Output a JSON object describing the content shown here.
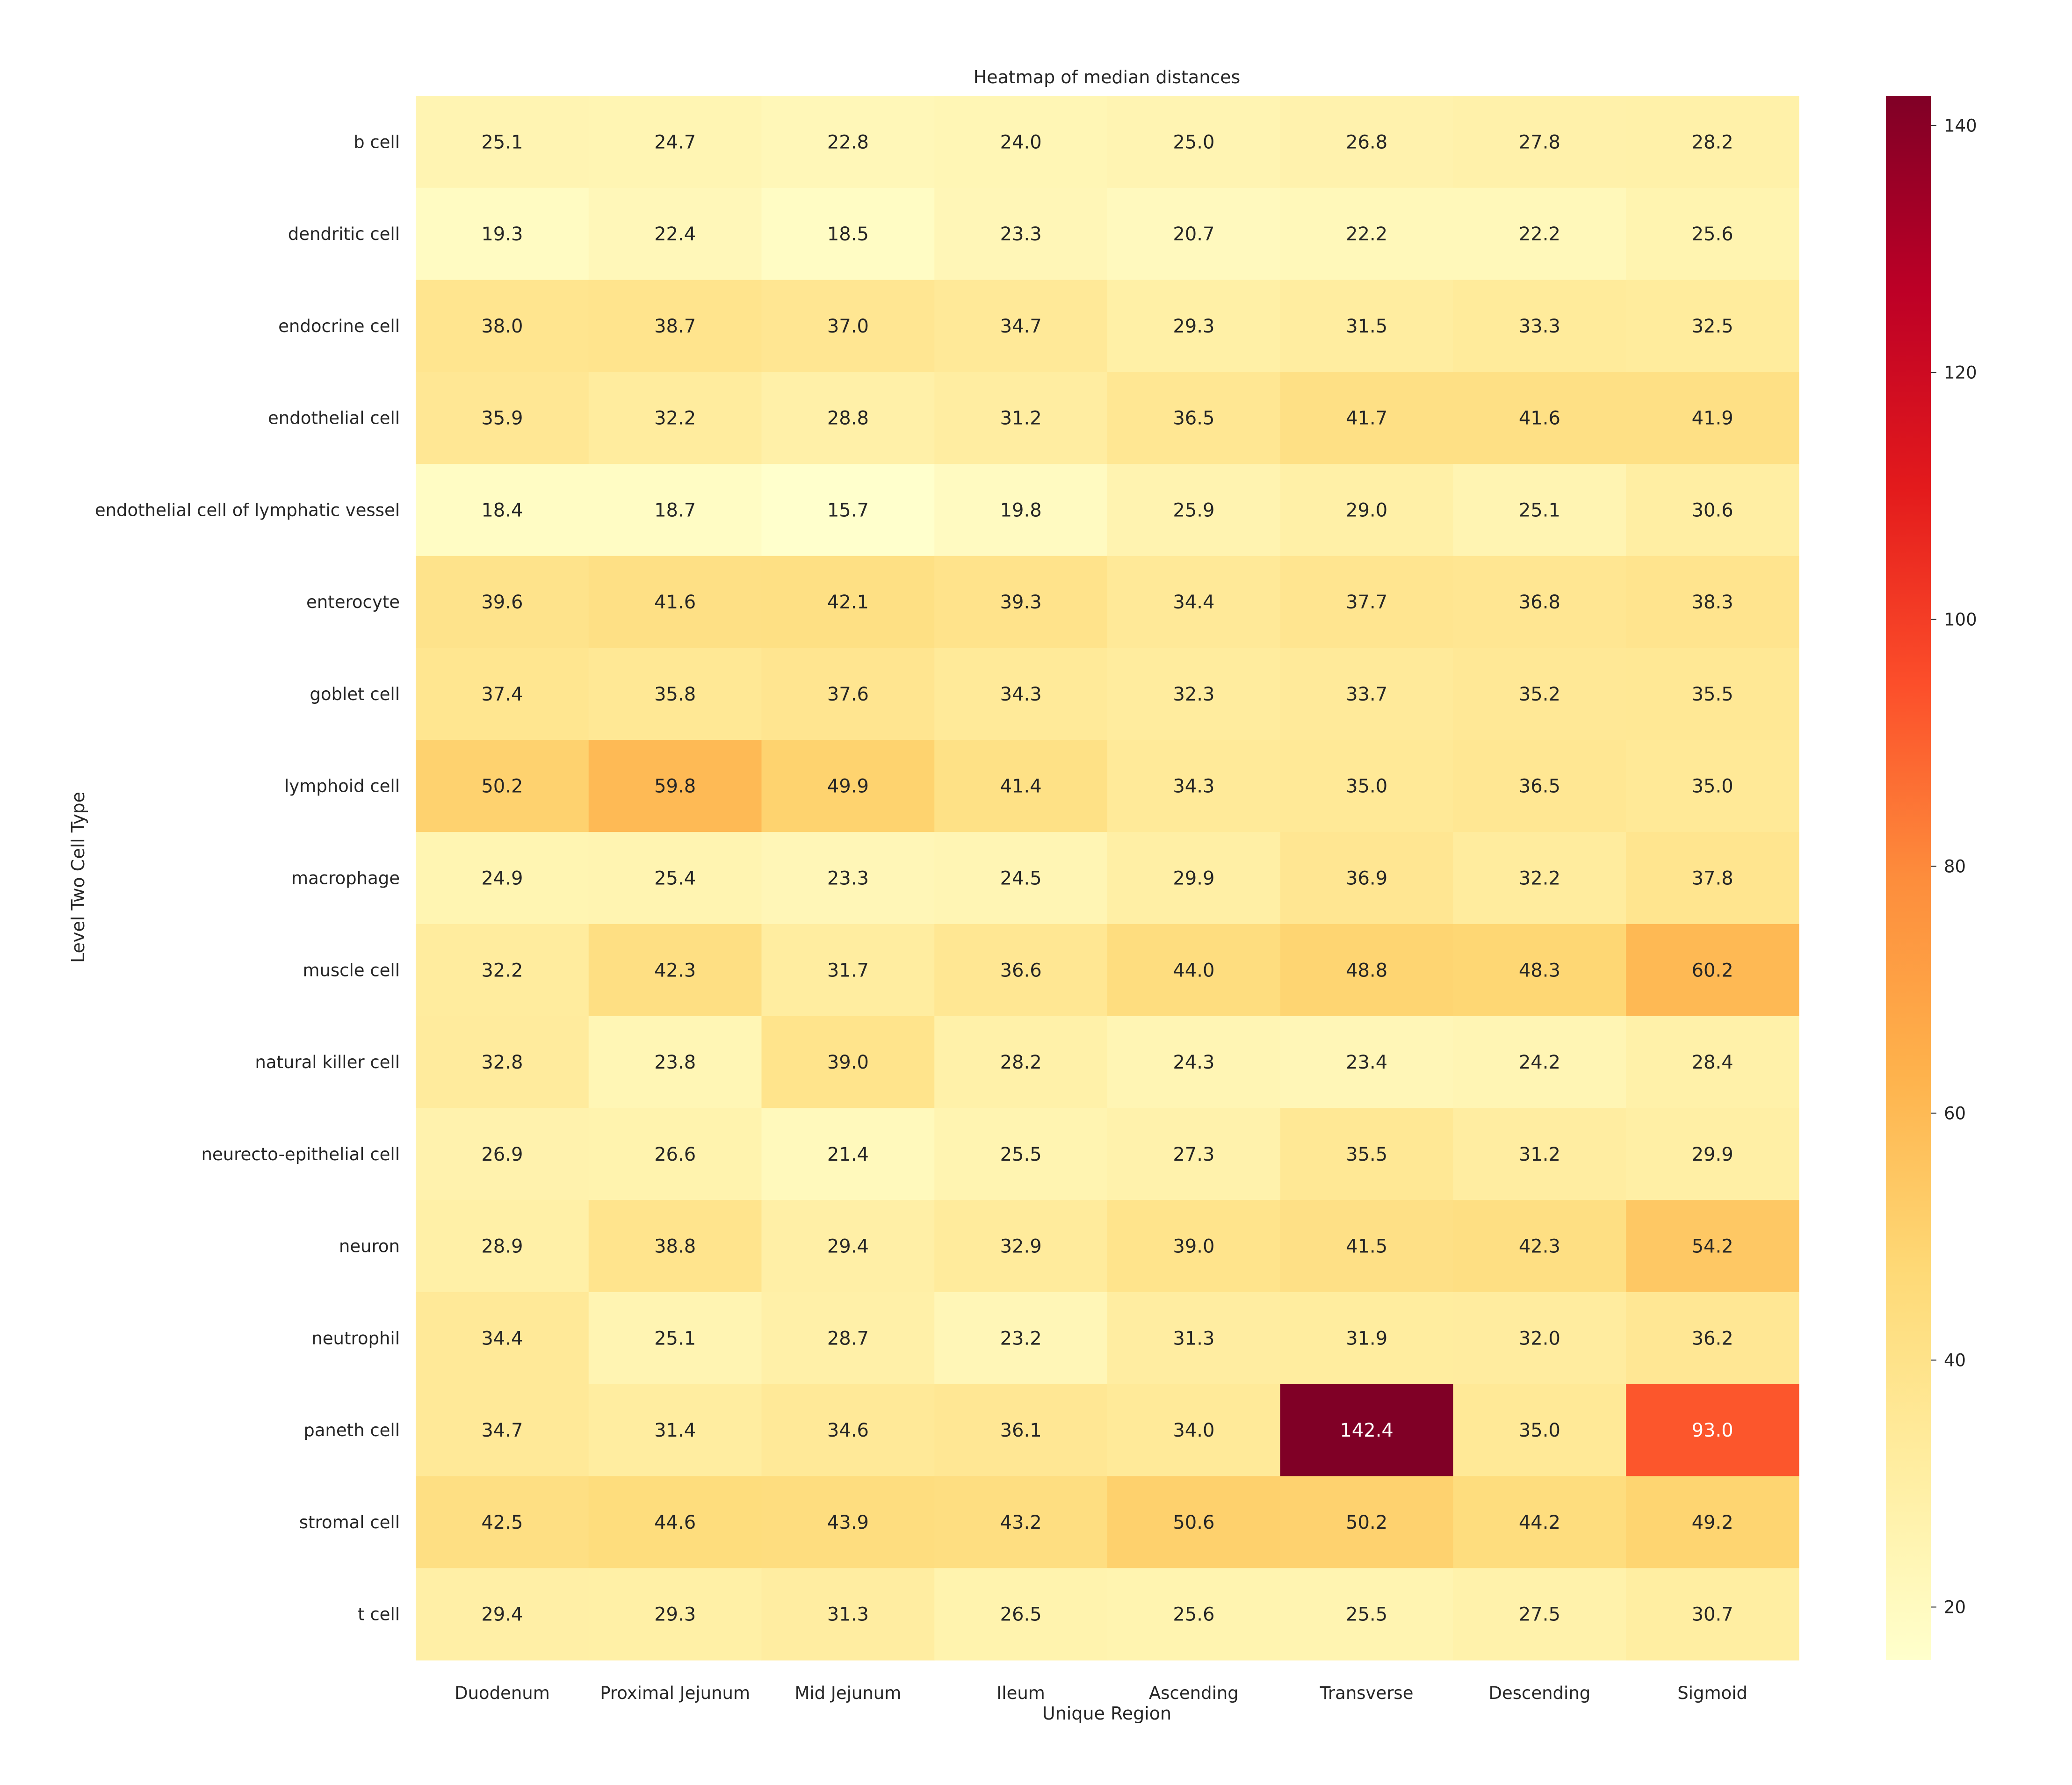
{
  "chart_data": {
    "type": "heatmap",
    "title": "Heatmap of median distances",
    "xlabel": "Unique Region",
    "ylabel": "Level Two Cell Type",
    "colormap": "YlOrRd",
    "color_stops": [
      "#ffffcc",
      "#ffeda0",
      "#fed976",
      "#feb24c",
      "#fd8d3c",
      "#fc4e2a",
      "#e31a1c",
      "#bd0026",
      "#800026"
    ],
    "vmin": 15.7,
    "vmax": 142.4,
    "colorbar_ticks": [
      20,
      40,
      60,
      80,
      100,
      120,
      140
    ],
    "grid": false,
    "colorbar": "right",
    "columns": [
      "Duodenum",
      "Proximal Jejunum",
      "Mid Jejunum",
      "Ileum",
      "Ascending",
      "Transverse",
      "Descending",
      "Sigmoid"
    ],
    "rows": [
      "b cell",
      "dendritic cell",
      "endocrine cell",
      "endothelial cell",
      "endothelial cell of lymphatic vessel",
      "enterocyte",
      "goblet cell",
      "lymphoid cell",
      "macrophage",
      "muscle cell",
      "natural killer cell",
      "neurecto-epithelial cell",
      "neuron",
      "neutrophil",
      "paneth cell",
      "stromal cell",
      "t cell"
    ],
    "values": [
      [
        25.1,
        24.7,
        22.8,
        24.0,
        25.0,
        26.8,
        27.8,
        28.2
      ],
      [
        19.3,
        22.4,
        18.5,
        23.3,
        20.7,
        22.2,
        22.2,
        25.6
      ],
      [
        38.0,
        38.7,
        37.0,
        34.7,
        29.3,
        31.5,
        33.3,
        32.5
      ],
      [
        35.9,
        32.2,
        28.8,
        31.2,
        36.5,
        41.7,
        41.6,
        41.9
      ],
      [
        18.4,
        18.7,
        15.7,
        19.8,
        25.9,
        29.0,
        25.1,
        30.6
      ],
      [
        39.6,
        41.6,
        42.1,
        39.3,
        34.4,
        37.7,
        36.8,
        38.3
      ],
      [
        37.4,
        35.8,
        37.6,
        34.3,
        32.3,
        33.7,
        35.2,
        35.5
      ],
      [
        50.2,
        59.8,
        49.9,
        41.4,
        34.3,
        35.0,
        36.5,
        35.0
      ],
      [
        24.9,
        25.4,
        23.3,
        24.5,
        29.9,
        36.9,
        32.2,
        37.8
      ],
      [
        32.2,
        42.3,
        31.7,
        36.6,
        44.0,
        48.8,
        48.3,
        60.2
      ],
      [
        32.8,
        23.8,
        39.0,
        28.2,
        24.3,
        23.4,
        24.2,
        28.4
      ],
      [
        26.9,
        26.6,
        21.4,
        25.5,
        27.3,
        35.5,
        31.2,
        29.9
      ],
      [
        28.9,
        38.8,
        29.4,
        32.9,
        39.0,
        41.5,
        42.3,
        54.2
      ],
      [
        34.4,
        25.1,
        28.7,
        23.2,
        31.3,
        31.9,
        32.0,
        36.2
      ],
      [
        34.7,
        31.4,
        34.6,
        36.1,
        34.0,
        142.4,
        35.0,
        93.0
      ],
      [
        42.5,
        44.6,
        43.9,
        43.2,
        50.6,
        50.2,
        44.2,
        49.2
      ],
      [
        29.4,
        29.3,
        31.3,
        26.5,
        25.6,
        25.5,
        27.5,
        30.7
      ]
    ]
  }
}
